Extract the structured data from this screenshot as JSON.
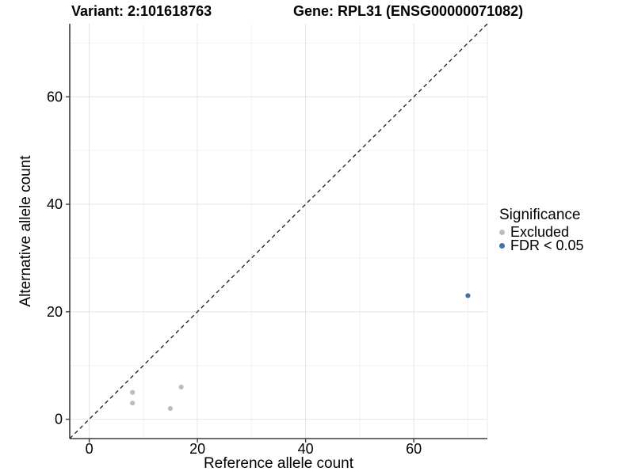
{
  "figure": {
    "title_variant": "Variant: 2:101618763",
    "title_gene": "Gene: RPL31 (ENSG00000071082)"
  },
  "chart_data": {
    "type": "scatter",
    "title": "Variant: 2:101618763    Gene: RPL31 (ENSG00000071082)",
    "title_variant": "Variant: 2:101618763",
    "title_gene": "Gene: RPL31 (ENSG00000071082)",
    "xlabel": "Reference allele count",
    "ylabel": "Alternative allele count",
    "xlim": [
      -3.6,
      73.6
    ],
    "ylim": [
      -3.6,
      73.6
    ],
    "x_ticks": [
      0,
      20,
      40,
      60
    ],
    "y_ticks": [
      0,
      20,
      40,
      60
    ],
    "x_minor_ticks": [
      10,
      30,
      50,
      70
    ],
    "y_minor_ticks": [
      10,
      30,
      50,
      70
    ],
    "grid": true,
    "identity_line": {
      "style": "dashed",
      "from": -3.6,
      "to": 73.6
    },
    "series": [
      {
        "name": "Excluded",
        "color": "#bcbcbc",
        "points": [
          [
            8,
            5
          ],
          [
            8,
            3
          ],
          [
            15,
            2
          ],
          [
            17,
            6
          ]
        ]
      },
      {
        "name": "FDR < 0.05",
        "color": "#4372a6",
        "points": [
          [
            70,
            23
          ]
        ]
      }
    ],
    "legend": {
      "title": "Significance",
      "position": "right",
      "items": [
        {
          "label": "Excluded",
          "color": "#bcbcbc"
        },
        {
          "label": "FDR < 0.05",
          "color": "#4372a6"
        }
      ]
    },
    "style": {
      "grid_major": "#e4e4e4",
      "grid_minor": "#f2f2f2",
      "axis_line": "#3c3c3c",
      "panel_right_border": "#e8e8e8",
      "identity_line_color": "#1a1a1a",
      "text": "#000000",
      "background": "#ffffff"
    }
  }
}
